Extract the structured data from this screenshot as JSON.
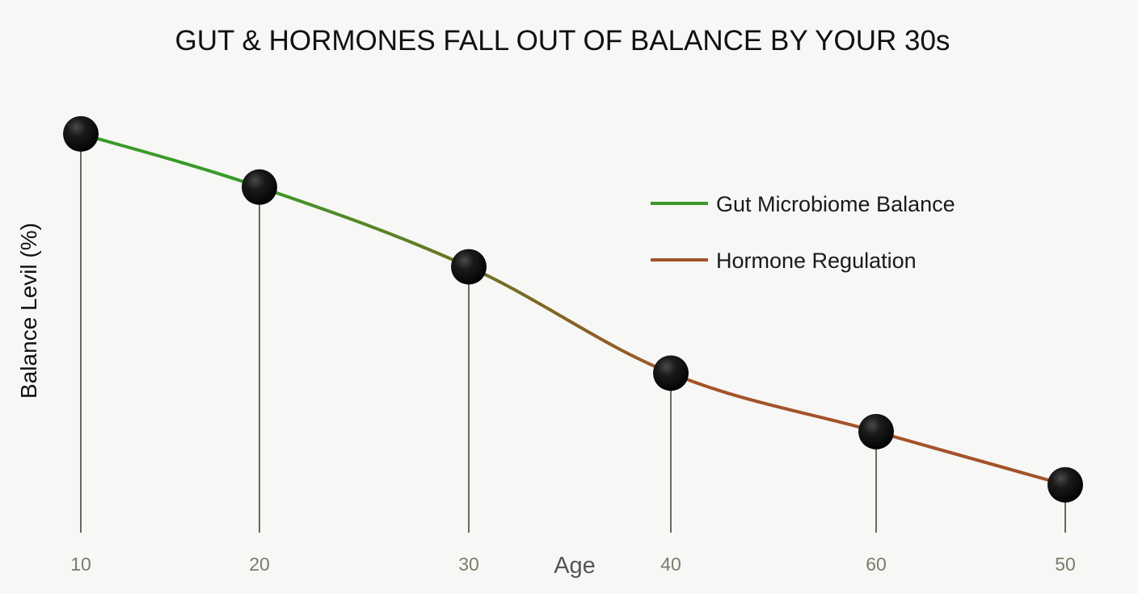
{
  "chart_data": {
    "type": "line",
    "title": "GUT & HORMONES FALL OUT OF BALANCE BY YOUR 30s",
    "xlabel": "Age",
    "ylabel": "Balance Levil (%)",
    "categories": [
      "10",
      "20",
      "30",
      "40",
      "60",
      "50"
    ],
    "values": [
      90,
      80,
      65,
      45,
      34,
      24
    ],
    "ylim": [
      15,
      100
    ],
    "grid": false,
    "legend": {
      "position": "top-right",
      "entries": [
        {
          "label": "Gut Microbiome Balance",
          "color": "#3a9a2a"
        },
        {
          "label": "Hormone Regulation",
          "color": "#a3532a"
        }
      ]
    },
    "colors": {
      "start": "#3a9a2a",
      "end": "#a3532a",
      "marker": "#111111",
      "stem": "#3c4a3c"
    }
  }
}
